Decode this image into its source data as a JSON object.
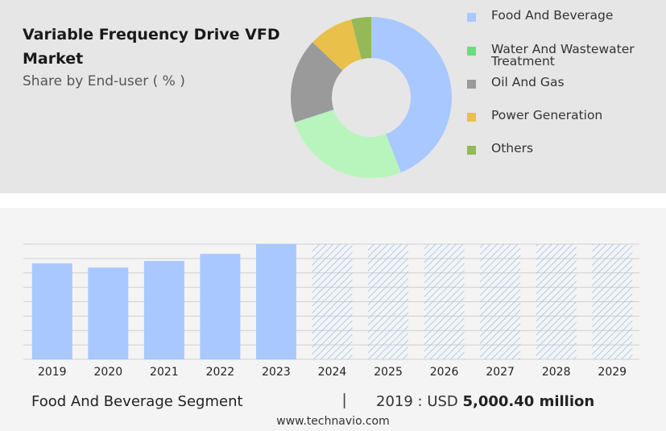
{
  "header": {
    "title": "Variable Frequency Drive VFD Market",
    "subtitle": "Share by End-user ( % )"
  },
  "legend": [
    {
      "label": "Food And Beverage",
      "color": "#a9c8ff"
    },
    {
      "label": "Water And Wastewater Treatment",
      "color": "#63e07c"
    },
    {
      "label": "Oil And Gas",
      "color": "#9a9a9a"
    },
    {
      "label": "Power Generation",
      "color": "#e8c04a"
    },
    {
      "label": "Others",
      "color": "#95b858"
    }
  ],
  "footer": {
    "segment": "Food And Beverage Segment",
    "divider": "|",
    "value_prefix": "2019 : USD ",
    "value": "5,000.40 million",
    "website": "www.technavio.com"
  },
  "chart_data": [
    {
      "type": "pie",
      "subtype": "donut",
      "categories": [
        "Food And Beverage",
        "Water And Wastewater Treatment",
        "Oil And Gas",
        "Power Generation",
        "Others"
      ],
      "values": [
        44,
        26,
        17,
        9,
        4
      ],
      "colors": [
        "#a9c8ff",
        "#b8f5bd",
        "#9a9a9a",
        "#e8c04a",
        "#95b858"
      ]
    },
    {
      "type": "bar",
      "categories": [
        "2019",
        "2020",
        "2021",
        "2022",
        "2023",
        "2024",
        "2025",
        "2026",
        "2027",
        "2028",
        "2029"
      ],
      "values": [
        5000.4,
        4780,
        5120,
        5490,
        6000,
        6000,
        6000,
        6000,
        6000,
        6000,
        6000
      ],
      "forecast_from": "2024",
      "bar_color": "#a9c8ff",
      "forecast_hatch_color": "#9cc0ee",
      "ylim": [
        0,
        6000
      ],
      "grid": true
    }
  ]
}
